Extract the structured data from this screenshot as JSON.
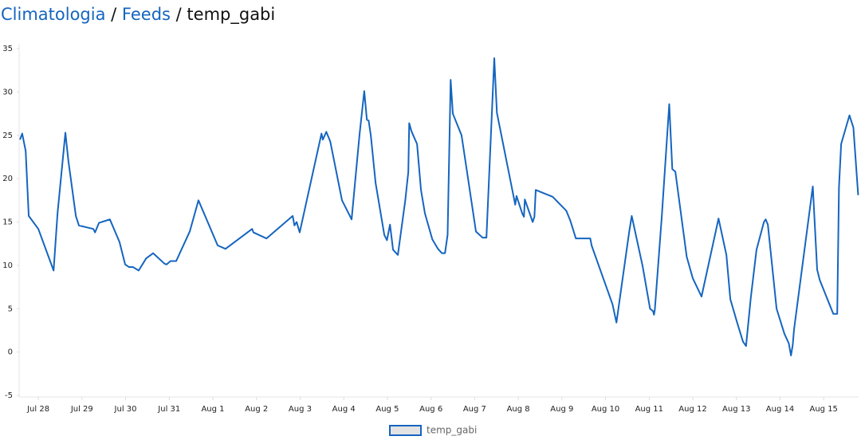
{
  "header": {
    "crumbs": [
      "Climatologia",
      "Feeds",
      "temp_gabi"
    ],
    "separator": "/"
  },
  "chart_data": {
    "type": "line",
    "x": [
      27.58,
      27.63,
      27.71,
      27.78,
      28.0,
      28.35,
      28.44,
      28.62,
      28.69,
      28.86,
      28.93,
      29.26,
      29.3,
      29.39,
      29.64,
      29.86,
      29.99,
      30.08,
      30.17,
      30.3,
      30.47,
      30.63,
      30.89,
      30.94,
      31.03,
      31.16,
      31.47,
      31.67,
      32.11,
      32.29,
      32.9,
      32.93,
      33.23,
      33.83,
      33.87,
      33.92,
      33.99,
      34.49,
      34.52,
      34.6,
      34.69,
      34.96,
      35.18,
      35.36,
      35.47,
      35.53,
      35.57,
      35.62,
      35.73,
      35.93,
      35.99,
      36.06,
      36.13,
      36.24,
      36.41,
      36.48,
      36.5,
      36.55,
      36.61,
      36.68,
      36.77,
      36.86,
      37.03,
      37.16,
      37.25,
      37.32,
      37.38,
      37.45,
      37.5,
      37.7,
      38.03,
      38.18,
      38.27,
      38.45,
      38.51,
      38.93,
      38.96,
      39.09,
      39.13,
      39.15,
      39.33,
      39.37,
      39.4,
      39.79,
      40.1,
      40.19,
      40.32,
      40.65,
      40.68,
      41.16,
      41.25,
      41.54,
      41.6,
      41.85,
      42.02,
      42.09,
      42.11,
      42.13,
      42.29,
      42.46,
      42.53,
      42.6,
      42.86,
      43.0,
      43.2,
      43.59,
      43.77,
      43.86,
      44.01,
      44.15,
      44.22,
      44.33,
      44.46,
      44.63,
      44.67,
      44.72,
      44.92,
      45.1,
      45.2,
      45.25,
      45.29,
      45.32,
      45.75,
      45.85,
      45.91,
      46.22,
      46.31,
      46.35,
      46.4,
      46.59,
      46.68,
      46.79
    ],
    "series": [
      {
        "name": "temp_gabi",
        "color": "#1565c0",
        "values": [
          24.5,
          25.2,
          23.2,
          15.7,
          14.2,
          9.4,
          16,
          25.3,
          22,
          15.7,
          14.6,
          14.2,
          13.8,
          14.9,
          15.3,
          12.7,
          10.1,
          9.8,
          9.8,
          9.4,
          10.8,
          11.4,
          10.2,
          10.1,
          10.5,
          10.5,
          13.9,
          17.5,
          12.3,
          11.9,
          14.2,
          13.8,
          13.1,
          15.7,
          14.6,
          15,
          13.8,
          25.2,
          24.5,
          25.4,
          24.3,
          17.5,
          15.3,
          25,
          30.1,
          26.8,
          26.7,
          25,
          19.5,
          13.5,
          12.9,
          14.7,
          11.8,
          11.2,
          17.5,
          20.8,
          26.4,
          25.5,
          24.8,
          24,
          18.7,
          16,
          13,
          11.9,
          11.4,
          11.4,
          13.5,
          31.4,
          27.5,
          25,
          13.9,
          13.2,
          13.2,
          33.9,
          27.6,
          17,
          18,
          16,
          15.6,
          17.6,
          15,
          15.6,
          18.7,
          17.9,
          16.3,
          15.2,
          13.1,
          13.1,
          12.3,
          5.5,
          3.4,
          13.8,
          15.7,
          9.9,
          5,
          4.7,
          4.3,
          4.9,
          15.7,
          28.6,
          21.1,
          20.8,
          11,
          8.5,
          6.4,
          15.4,
          11.2,
          6.1,
          3.5,
          1.2,
          0.7,
          6.3,
          11.8,
          15,
          15.3,
          14.7,
          5,
          2.1,
          1,
          -0.4,
          0.8,
          2.6,
          19.1,
          9.5,
          8.3,
          4.4,
          4.4,
          19,
          24,
          27.3,
          25.9,
          18.1
        ]
      }
    ],
    "xlim": [
      27.56,
      46.8
    ],
    "xticks": [
      {
        "value": 28,
        "label": "Jul 28"
      },
      {
        "value": 29,
        "label": "Jul 29"
      },
      {
        "value": 30,
        "label": "Jul 30"
      },
      {
        "value": 31,
        "label": "Jul 31"
      },
      {
        "value": 32,
        "label": "Aug 1"
      },
      {
        "value": 33,
        "label": "Aug 2"
      },
      {
        "value": 34,
        "label": "Aug 3"
      },
      {
        "value": 35,
        "label": "Aug 4"
      },
      {
        "value": 36,
        "label": "Aug 5"
      },
      {
        "value": 37,
        "label": "Aug 6"
      },
      {
        "value": 38,
        "label": "Aug 7"
      },
      {
        "value": 39,
        "label": "Aug 8"
      },
      {
        "value": 40,
        "label": "Aug 9"
      },
      {
        "value": 41,
        "label": "Aug 10"
      },
      {
        "value": 42,
        "label": "Aug 11"
      },
      {
        "value": 43,
        "label": "Aug 12"
      },
      {
        "value": 44,
        "label": "Aug 13"
      },
      {
        "value": 45,
        "label": "Aug 14"
      },
      {
        "value": 46,
        "label": "Aug 15"
      }
    ],
    "ylim": [
      -5,
      35
    ],
    "yticks": [
      -5,
      0,
      5,
      10,
      15,
      20,
      25,
      30,
      35
    ],
    "legend": "bottom"
  }
}
